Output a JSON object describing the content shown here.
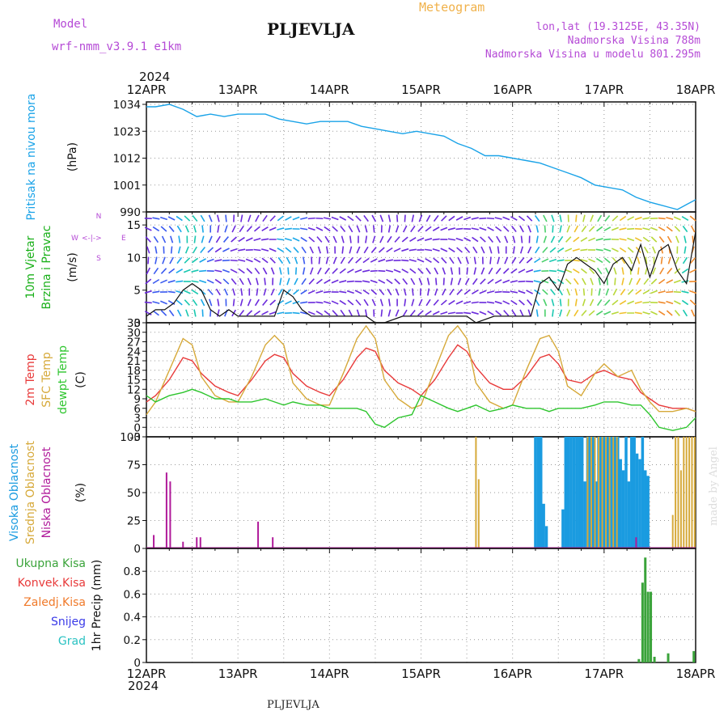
{
  "header": {
    "model_label": "Model",
    "model_name": "wrf-nmm_v3.9.1 e1km",
    "station": "PLJEVLJA",
    "product": "Meteogram",
    "coords": "lon,lat (19.3125E, 43.35N)",
    "elevation": "Nadmorska Visina 788m",
    "model_elevation": "Nadmorska Visina u modelu 801.295m",
    "bottom_station": "PLJEVLJA",
    "credit": "made by Angel"
  },
  "axis": {
    "year": "2024",
    "dates": [
      "12APR",
      "13APR",
      "14APR",
      "15APR",
      "16APR",
      "17APR",
      "18APR"
    ]
  },
  "colors": {
    "pressure": "#1aa3e8",
    "t2m": "#e83a3a",
    "sfc": "#d6a93a",
    "dewpt": "#2ec52e",
    "high_cloud": "#1a9be0",
    "mid_cloud": "#d6a93a",
    "low_cloud": "#b01a9a",
    "total_precip": "#3aa33a",
    "conv_precip": "#e83a3a",
    "frz_precip": "#f07a2a",
    "snow": "#3a3ae8",
    "hail": "#2ac2c2",
    "wind_text": "#1ab01a",
    "wind_dir": "#b54ad6"
  },
  "chart_data": [
    {
      "type": "line",
      "ylabel_lines": [
        "Pritisak na nivou mora",
        "(hPa)"
      ],
      "ylim": [
        990,
        1035
      ],
      "yticks": [
        990,
        1001,
        1012,
        1023,
        1034
      ],
      "x_days": [
        0,
        0.1,
        0.25,
        0.4,
        0.55,
        0.7,
        0.85,
        1.0,
        1.15,
        1.3,
        1.45,
        1.6,
        1.75,
        1.9,
        2.05,
        2.2,
        2.35,
        2.5,
        2.65,
        2.8,
        2.95,
        3.1,
        3.25,
        3.4,
        3.55,
        3.7,
        3.85,
        4.0,
        4.15,
        4.3,
        4.45,
        4.6,
        4.75,
        4.9,
        5.05,
        5.2,
        5.35,
        5.5,
        5.6,
        5.7,
        5.8,
        5.9,
        6.0
      ],
      "series": [
        {
          "values": [
            1033,
            1033,
            1034,
            1032,
            1029,
            1030,
            1029,
            1030,
            1030,
            1030,
            1028,
            1027,
            1026,
            1027,
            1027,
            1027,
            1025,
            1024,
            1023,
            1022,
            1023,
            1022,
            1021,
            1018,
            1016,
            1013,
            1013,
            1012,
            1011,
            1010,
            1008,
            1006,
            1004,
            1001,
            1000,
            999,
            996,
            994,
            993,
            992,
            991,
            993,
            995
          ]
        }
      ]
    },
    {
      "type": "line",
      "ylabel_lines": [
        "10m Vjetar",
        "Brzina i Pravac",
        "(m/s)"
      ],
      "direction_legend": [
        "N",
        "W",
        "E",
        "S",
        "<-|->"
      ],
      "ylim": [
        0,
        17
      ],
      "yticks": [
        0,
        5,
        10,
        15
      ],
      "x_days": [
        0,
        0.1,
        0.2,
        0.3,
        0.4,
        0.5,
        0.6,
        0.7,
        0.8,
        0.9,
        1.0,
        1.2,
        1.4,
        1.5,
        1.6,
        1.7,
        1.8,
        2.0,
        2.2,
        2.4,
        2.5,
        2.6,
        2.8,
        3.0,
        3.2,
        3.4,
        3.5,
        3.6,
        3.8,
        4.0,
        4.2,
        4.3,
        4.4,
        4.5,
        4.6,
        4.7,
        4.8,
        4.9,
        5.0,
        5.1,
        5.2,
        5.3,
        5.4,
        5.5,
        5.6,
        5.7,
        5.8,
        5.9,
        6.0
      ],
      "series": [
        {
          "name": "speed",
          "values": [
            1,
            2,
            2,
            3,
            5,
            6,
            5,
            2,
            1,
            2,
            1,
            1,
            1,
            5,
            4,
            2,
            1,
            1,
            1,
            1,
            0,
            0,
            1,
            1,
            1,
            1,
            1,
            0,
            1,
            1,
            1,
            6,
            7,
            5,
            9,
            10,
            9,
            8,
            6,
            9,
            10,
            8,
            12,
            7,
            11,
            12,
            8,
            6,
            14
          ]
        }
      ]
    },
    {
      "type": "line",
      "ylabel_lines": [
        "2m Temp",
        "SFC Temp",
        "dewpt Temp",
        "(C)"
      ],
      "ylim": [
        -3,
        33
      ],
      "yticks": [
        -3,
        0,
        3,
        6,
        9,
        12,
        15,
        18,
        21,
        24,
        27,
        30,
        33
      ],
      "x_days": [
        0,
        0.1,
        0.25,
        0.4,
        0.5,
        0.6,
        0.75,
        0.9,
        1.0,
        1.15,
        1.3,
        1.4,
        1.5,
        1.6,
        1.75,
        1.9,
        2.0,
        2.15,
        2.3,
        2.4,
        2.5,
        2.6,
        2.75,
        2.9,
        3.0,
        3.15,
        3.3,
        3.4,
        3.5,
        3.6,
        3.75,
        3.9,
        4.0,
        4.15,
        4.3,
        4.4,
        4.5,
        4.6,
        4.75,
        4.9,
        5.0,
        5.15,
        5.3,
        5.4,
        5.5,
        5.6,
        5.75,
        5.9,
        6.0
      ],
      "series": [
        {
          "name": "2m Temp",
          "values": [
            8,
            10,
            15,
            22,
            21,
            17,
            13,
            11,
            10,
            15,
            21,
            23,
            22,
            17,
            13,
            11,
            10,
            15,
            22,
            25,
            24,
            18,
            14,
            12,
            10,
            15,
            22,
            26,
            24,
            19,
            14,
            12,
            12,
            16,
            22,
            23,
            20,
            15,
            14,
            17,
            18,
            16,
            15,
            11,
            9,
            7,
            6,
            6,
            5
          ]
        },
        {
          "name": "SFC Temp",
          "values": [
            4,
            8,
            18,
            28,
            26,
            16,
            10,
            8,
            8,
            16,
            26,
            29,
            26,
            14,
            9,
            7,
            7,
            17,
            28,
            32,
            28,
            15,
            9,
            6,
            7,
            18,
            29,
            32,
            28,
            14,
            8,
            6,
            7,
            18,
            28,
            29,
            24,
            13,
            10,
            17,
            20,
            16,
            18,
            12,
            8,
            5,
            5,
            6,
            5
          ]
        },
        {
          "name": "dewpt Temp",
          "values": [
            10,
            8,
            10,
            11,
            12,
            11,
            9,
            9,
            8,
            8,
            9,
            8,
            7,
            8,
            7,
            7,
            6,
            6,
            6,
            5,
            1,
            0,
            3,
            4,
            10,
            8,
            6,
            5,
            6,
            7,
            5,
            6,
            7,
            6,
            6,
            5,
            6,
            6,
            6,
            7,
            8,
            8,
            7,
            7,
            4,
            0,
            -1,
            0,
            3
          ]
        }
      ]
    },
    {
      "type": "bar",
      "ylabel_lines": [
        "Visoka Oblacnost",
        "Srednja Oblacnost",
        "Niska Oblacnost",
        "(%)"
      ],
      "ylim": [
        0,
        100
      ],
      "yticks": [
        0,
        25,
        50,
        75,
        100
      ],
      "series": [
        {
          "name": "Visoka Oblacnost",
          "x_days": [
            4.25,
            4.28,
            4.31,
            4.34,
            4.37,
            4.55,
            4.58,
            4.61,
            4.64,
            4.67,
            4.7,
            4.73,
            4.76,
            4.79,
            4.82,
            4.85,
            4.88,
            4.91,
            4.94,
            4.97,
            5.0,
            5.03,
            5.06,
            5.09,
            5.12,
            5.15,
            5.18,
            5.21,
            5.24,
            5.27,
            5.3,
            5.33,
            5.36,
            5.39,
            5.42,
            5.45,
            5.48
          ],
          "values": [
            100,
            100,
            100,
            40,
            20,
            35,
            100,
            100,
            100,
            100,
            100,
            100,
            100,
            60,
            100,
            100,
            100,
            60,
            100,
            100,
            100,
            100,
            100,
            100,
            100,
            100,
            80,
            70,
            100,
            60,
            100,
            100,
            85,
            80,
            100,
            70,
            65
          ]
        },
        {
          "name": "Srednja Oblacnost",
          "x_days": [
            3.6,
            3.63,
            4.82,
            4.86,
            4.9,
            4.94,
            4.98,
            5.02,
            5.06,
            5.1,
            5.14,
            5.75,
            5.78,
            5.81,
            5.84,
            5.87,
            5.9,
            5.93,
            5.96,
            5.99
          ],
          "values": [
            100,
            62,
            100,
            100,
            100,
            100,
            100,
            100,
            100,
            100,
            100,
            30,
            100,
            100,
            70,
            100,
            100,
            100,
            100,
            100
          ]
        },
        {
          "name": "Niska Oblacnost",
          "x_days": [
            0.08,
            0.22,
            0.26,
            0.4,
            0.55,
            0.59,
            1.22,
            1.38,
            5.35
          ],
          "values": [
            12,
            68,
            60,
            6,
            10,
            10,
            24,
            10,
            10
          ]
        }
      ]
    },
    {
      "type": "bar",
      "ylabel_lines": [
        "1hr Precip (mm)"
      ],
      "legend": [
        "Ukupna Kisa",
        "Konvek.Kisa",
        "Zaledj.Kisa",
        "Snijeg",
        "Grad"
      ],
      "ylim": [
        0,
        1.0
      ],
      "yticks": [
        0,
        0.2,
        0.4,
        0.6,
        0.8
      ],
      "series": [
        {
          "name": "Ukupna Kisa",
          "x_days": [
            5.38,
            5.42,
            5.45,
            5.48,
            5.51,
            5.55,
            5.7,
            5.98
          ],
          "values": [
            0.03,
            0.7,
            0.92,
            0.62,
            0.62,
            0.05,
            0.08,
            0.1
          ]
        }
      ]
    }
  ]
}
